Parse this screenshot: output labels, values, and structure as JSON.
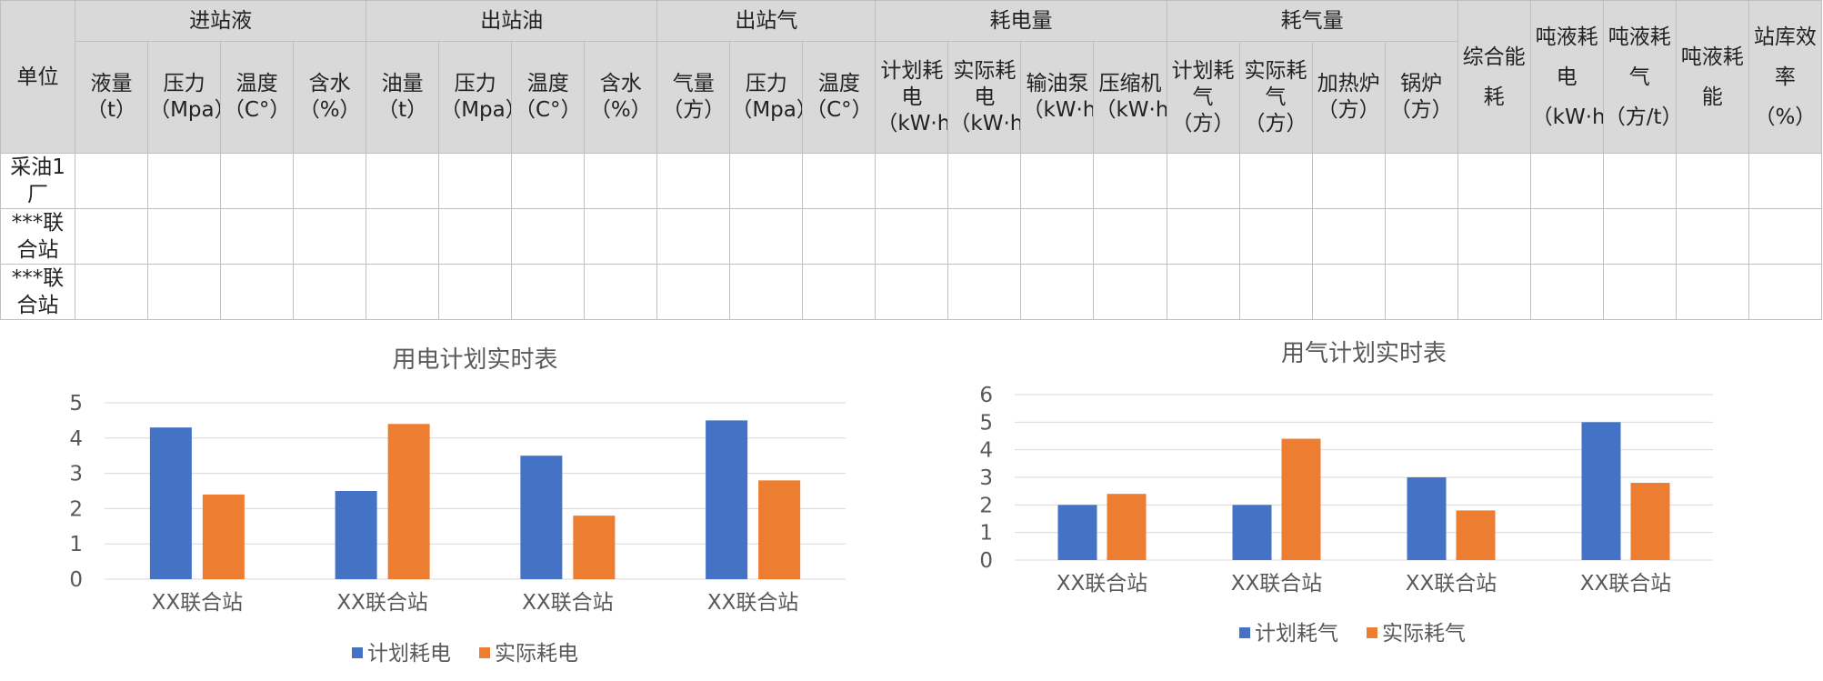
{
  "table": {
    "group_headers": [
      "单位",
      "进站液",
      "出站油",
      "出站气",
      "耗电量",
      "耗气量",
      "综合能耗",
      "吨液耗电（kW·h/t）",
      "吨液耗气（方/t）",
      "吨液耗能",
      "站库效率（%）"
    ],
    "sub_headers": [
      "液量（t）",
      "压力（Mpa）",
      "温度（C°）",
      "含水（%）",
      "油量（t）",
      "压力（Mpa）",
      "温度（C°）",
      "含水（%）",
      "气量（方）",
      "压力（Mpa）",
      "温度（C°）",
      "计划耗电（kW·h）",
      "实际耗电（kW·h）",
      "输油泵（kW·h）",
      "压缩机（kW·h）",
      "计划耗气（方）",
      "实际耗气（方）",
      "加热炉（方）",
      "锅炉（方）"
    ],
    "rows": [
      {
        "unit": "采油1厂"
      },
      {
        "unit": "***联合站"
      },
      {
        "unit": "***联合站"
      }
    ]
  },
  "colors": {
    "series_blue": "#4472c4",
    "series_orange": "#ed7d31",
    "grid": "#d9d9d9",
    "header_bg": "#d9d9d9"
  },
  "chart_data": [
    {
      "type": "bar",
      "title": "用电计划实时表",
      "categories": [
        "XX联合站",
        "XX联合站",
        "XX联合站",
        "XX联合站"
      ],
      "series": [
        {
          "name": "计划耗电",
          "values": [
            4.3,
            2.5,
            3.5,
            4.5
          ]
        },
        {
          "name": "实际耗电",
          "values": [
            2.4,
            4.4,
            1.8,
            2.8
          ]
        }
      ],
      "ylim": [
        0,
        5
      ],
      "yticks": [
        0,
        1,
        2,
        3,
        4,
        5
      ],
      "grid": true,
      "legend": "bottom"
    },
    {
      "type": "bar",
      "title": "用气计划实时表",
      "categories": [
        "XX联合站",
        "XX联合站",
        "XX联合站",
        "XX联合站"
      ],
      "series": [
        {
          "name": "计划耗气",
          "values": [
            2,
            2,
            3,
            5
          ]
        },
        {
          "name": "实际耗气",
          "values": [
            2.4,
            4.4,
            1.8,
            2.8
          ]
        }
      ],
      "ylim": [
        0,
        6
      ],
      "yticks": [
        0,
        1,
        2,
        3,
        4,
        5,
        6
      ],
      "grid": true,
      "legend": "bottom"
    }
  ]
}
